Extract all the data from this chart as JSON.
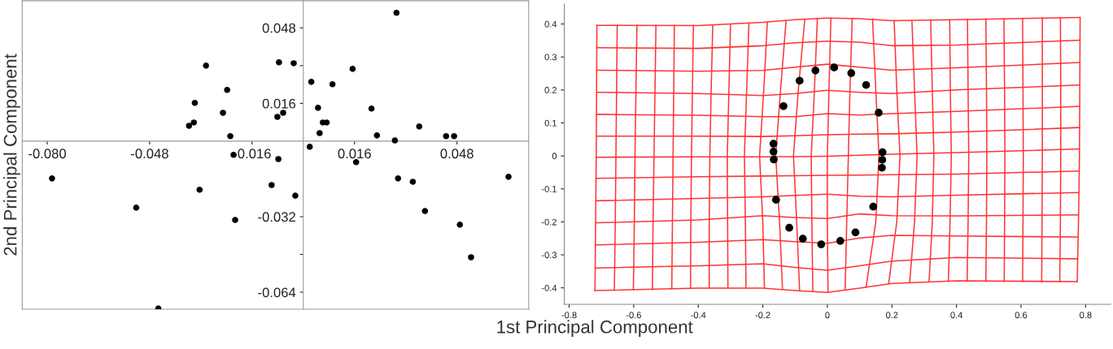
{
  "chart_data": [
    {
      "type": "scatter",
      "xlabel": "1st Principal Component",
      "ylabel": "2nd Principal Component",
      "color": "#000000",
      "marker": "circle",
      "x": [
        0.0291,
        -0.0076,
        -0.003,
        -0.0304,
        0.0154,
        0.0025,
        0.0091,
        -0.0238,
        -0.0339,
        -0.0251,
        0.0046,
        0.0213,
        -0.0063,
        -0.0081,
        -0.0342,
        -0.0357,
        0.0061,
        0.0073,
        0.0362,
        -0.0228,
        0.0051,
        0.023,
        0.0446,
        0.0471,
        0.0286,
        0.002,
        -0.0218,
        -0.0078,
        0.0165,
        -0.0785,
        0.0296,
        0.0342,
        0.0641,
        -0.0099,
        -0.0324,
        -0.0025,
        -0.0522,
        0.038,
        -0.0213,
        0.0489,
        0.0524,
        -0.0453
      ],
      "values": [
        0.0544,
        0.0334,
        0.033,
        0.032,
        0.0306,
        0.0251,
        0.0241,
        0.0217,
        0.0162,
        0.012,
        0.0141,
        0.0138,
        0.012,
        0.0103,
        0.0079,
        0.0065,
        0.0079,
        0.0079,
        0.0062,
        0.0021,
        0.0034,
        0.0024,
        0.0021,
        0.0021,
        0.0003,
        -0.0024,
        -0.0058,
        -0.0076,
        -0.0089,
        -0.0158,
        -0.0158,
        -0.0172,
        -0.0151,
        -0.0186,
        -0.0206,
        -0.0231,
        -0.0282,
        -0.0296,
        -0.0334,
        -0.0354,
        -0.0492,
        -0.0709
      ],
      "xlim": [
        -0.0878,
        0.0704
      ],
      "ylim": [
        -0.0712,
        0.0595
      ],
      "xticks": [
        {
          "value": -0.08,
          "label": "-0.080"
        },
        -0.048,
        -0.016,
        0.016,
        0.048
      ],
      "yticks": [
        0.048,
        {
          "value": 0.032,
          "label": null
        },
        0.016,
        -0.032,
        {
          "value": -0.048,
          "label": null
        },
        -0.064
      ]
    },
    {
      "type": "line",
      "xlim": [
        -0.815,
        0.878
      ],
      "ylim": [
        -0.45,
        0.46
      ],
      "xticks": [
        -0.8,
        -0.6,
        -0.4,
        -0.2,
        0,
        0.2,
        0.4,
        0.6,
        0.8
      ],
      "yticks": [
        -0.4,
        -0.3,
        -0.2,
        -0.1,
        0,
        0.1,
        0.2,
        0.3,
        0.4
      ],
      "series": [
        {
          "color": "#ff3333",
          "x": [
            -0.714,
            -0.4,
            -0.2,
            -0.1,
            0,
            0.1,
            0.2,
            0.4,
            0.783
          ],
          "values": [
            0.396,
            0.395,
            0.405,
            0.413,
            0.418,
            0.416,
            0.41,
            0.413,
            0.42
          ]
        },
        {
          "color": "#ff3333",
          "x": [
            -0.714,
            -0.4,
            -0.2,
            -0.1,
            0,
            0.1,
            0.2,
            0.4,
            0.782
          ],
          "values": [
            0.328,
            0.326,
            0.334,
            0.343,
            0.348,
            0.345,
            0.334,
            0.336,
            0.351
          ]
        },
        {
          "color": "#ff3333",
          "x": [
            -0.714,
            -0.4,
            -0.2,
            -0.1,
            0,
            0.1,
            0.2,
            0.4,
            0.781
          ],
          "values": [
            0.26,
            0.257,
            0.259,
            0.269,
            0.278,
            0.269,
            0.26,
            0.267,
            0.283
          ]
        },
        {
          "color": "#ff3333",
          "x": [
            -0.714,
            -0.4,
            -0.2,
            -0.1,
            0,
            0.1,
            0.2,
            0.4,
            0.781
          ],
          "values": [
            0.193,
            0.189,
            0.183,
            0.189,
            0.199,
            0.193,
            0.189,
            0.2,
            0.215
          ]
        },
        {
          "color": "#ff3333",
          "x": [
            -0.714,
            -0.4,
            -0.2,
            -0.1,
            0,
            0.1,
            0.2,
            0.4,
            0.781
          ],
          "values": [
            0.126,
            0.123,
            0.119,
            0.119,
            0.128,
            0.124,
            0.128,
            0.135,
            0.15
          ]
        },
        {
          "color": "#ff3333",
          "x": [
            -0.714,
            -0.4,
            -0.2,
            -0.1,
            0,
            0.1,
            0.2,
            0.4,
            0.78
          ],
          "values": [
            0.06,
            0.06,
            0.059,
            0.061,
            0.064,
            0.066,
            0.067,
            0.072,
            0.086
          ]
        },
        {
          "color": "#ff3333",
          "x": [
            -0.714,
            -0.4,
            -0.2,
            -0.1,
            0,
            0.1,
            0.2,
            0.4,
            0.78
          ],
          "values": [
            -0.004,
            -0.003,
            -0.003,
            -0.002,
            -0.001,
            0.002,
            0.005,
            0.01,
            0.021
          ]
        },
        {
          "color": "#ff3333",
          "x": [
            -0.715,
            -0.4,
            -0.2,
            -0.1,
            0,
            0.1,
            0.2,
            0.4,
            0.779
          ],
          "values": [
            -0.068,
            -0.063,
            -0.061,
            -0.06,
            -0.059,
            -0.058,
            -0.057,
            -0.055,
            -0.046
          ]
        },
        {
          "color": "#ff3333",
          "x": [
            -0.716,
            -0.4,
            -0.2,
            -0.1,
            0,
            0.1,
            0.2,
            0.4,
            0.778
          ],
          "values": [
            -0.136,
            -0.129,
            -0.124,
            -0.12,
            -0.116,
            -0.122,
            -0.124,
            -0.119,
            -0.111
          ]
        },
        {
          "color": "#ff3333",
          "x": [
            -0.717,
            -0.4,
            -0.2,
            -0.1,
            0,
            0.1,
            0.2,
            0.4,
            0.777
          ],
          "values": [
            -0.203,
            -0.194,
            -0.181,
            -0.187,
            -0.19,
            -0.176,
            -0.181,
            -0.182,
            -0.179
          ]
        },
        {
          "color": "#ff3333",
          "x": [
            -0.718,
            -0.4,
            -0.2,
            -0.1,
            0,
            0.1,
            0.2,
            0.4,
            0.776
          ],
          "values": [
            -0.27,
            -0.262,
            -0.254,
            -0.26,
            -0.265,
            -0.249,
            -0.241,
            -0.243,
            -0.246
          ]
        },
        {
          "color": "#ff3333",
          "x": [
            -0.719,
            -0.4,
            -0.2,
            -0.1,
            0,
            0.1,
            0.2,
            0.4,
            0.775
          ],
          "values": [
            -0.34,
            -0.333,
            -0.327,
            -0.338,
            -0.347,
            -0.333,
            -0.319,
            -0.308,
            -0.312
          ]
        },
        {
          "color": "#ff3333",
          "x": [
            -0.72,
            -0.4,
            -0.2,
            -0.1,
            0,
            0.1,
            0.2,
            0.4,
            0.774
          ],
          "values": [
            -0.408,
            -0.401,
            -0.401,
            -0.408,
            -0.414,
            -0.401,
            -0.387,
            -0.379,
            -0.381
          ]
        },
        {
          "color": "#ff3333",
          "x": [
            -0.714,
            -0.715,
            -0.716,
            -0.718,
            -0.72
          ],
          "values": [
            0.396,
            0.2,
            0,
            -0.2,
            -0.408
          ]
        },
        {
          "color": "#ff3333",
          "x": [
            -0.651,
            -0.653,
            -0.655,
            -0.657,
            -0.66
          ],
          "values": [
            0.396,
            0.2,
            0,
            -0.2,
            -0.407
          ]
        },
        {
          "color": "#ff3333",
          "x": [
            -0.59,
            -0.593,
            -0.596,
            -0.598,
            -0.601
          ],
          "values": [
            0.396,
            0.2,
            0,
            -0.2,
            -0.406
          ]
        },
        {
          "color": "#ff3333",
          "x": [
            -0.531,
            -0.534,
            -0.537,
            -0.54,
            -0.542
          ],
          "values": [
            0.396,
            0.2,
            0,
            -0.2,
            -0.405
          ]
        },
        {
          "color": "#ff3333",
          "x": [
            -0.474,
            -0.476,
            -0.478,
            -0.48,
            -0.482
          ],
          "values": [
            0.396,
            0.2,
            0,
            -0.2,
            -0.403
          ]
        },
        {
          "color": "#ff3333",
          "x": [
            -0.415,
            -0.418,
            -0.421,
            -0.423,
            -0.424
          ],
          "values": [
            0.395,
            0.2,
            0,
            -0.2,
            -0.402
          ]
        },
        {
          "color": "#ff3333",
          "x": [
            -0.355,
            -0.36,
            -0.364,
            -0.366,
            -0.366
          ],
          "values": [
            0.397,
            0.2,
            0,
            -0.2,
            -0.401
          ]
        },
        {
          "color": "#ff3333",
          "x": [
            -0.3,
            -0.305,
            -0.31,
            -0.309,
            -0.308
          ],
          "values": [
            0.399,
            0.2,
            0,
            -0.2,
            -0.401
          ]
        },
        {
          "color": "#ff3333",
          "x": [
            -0.243,
            -0.25,
            -0.257,
            -0.254,
            -0.252
          ],
          "values": [
            0.402,
            0.2,
            0,
            -0.2,
            -0.401
          ]
        },
        {
          "color": "#ff3333",
          "x": [
            -0.186,
            -0.197,
            -0.21,
            -0.2,
            -0.195
          ],
          "values": [
            0.405,
            0.2,
            0,
            -0.2,
            -0.401
          ]
        },
        {
          "color": "#ff3333",
          "x": [
            -0.128,
            -0.145,
            -0.16,
            -0.148,
            -0.139
          ],
          "values": [
            0.409,
            0.2,
            0,
            -0.2,
            -0.404
          ]
        },
        {
          "color": "#ff3333",
          "x": [
            -0.07,
            -0.09,
            -0.105,
            -0.095,
            -0.086
          ],
          "values": [
            0.413,
            0.2,
            0,
            -0.2,
            -0.407
          ]
        },
        {
          "color": "#ff3333",
          "x": [
            -0.031,
            -0.04,
            -0.05,
            -0.048,
            -0.045
          ],
          "values": [
            0.416,
            0.2,
            0,
            -0.2,
            -0.41
          ]
        },
        {
          "color": "#ff3333",
          "x": [
            0.011,
            0.005,
            0,
            0,
            0.002
          ],
          "values": [
            0.418,
            0.2,
            0,
            -0.2,
            -0.414
          ]
        },
        {
          "color": "#ff3333",
          "x": [
            0.077,
            0.07,
            0.065,
            0.06,
            0.055
          ],
          "values": [
            0.417,
            0.2,
            0,
            -0.2,
            -0.405
          ]
        },
        {
          "color": "#ff3333",
          "x": [
            0.14,
            0.15,
            0.16,
            0.15,
            0.12
          ],
          "values": [
            0.414,
            0.2,
            0,
            -0.2,
            -0.398
          ]
        },
        {
          "color": "#ff3333",
          "x": [
            0.207,
            0.215,
            0.225,
            0.215,
            0.19
          ],
          "values": [
            0.41,
            0.2,
            0,
            -0.2,
            -0.387
          ]
        },
        {
          "color": "#ff3333",
          "x": [
            0.262,
            0.27,
            0.278,
            0.27,
            0.255
          ],
          "values": [
            0.41,
            0.2,
            0,
            -0.2,
            -0.384
          ]
        },
        {
          "color": "#ff3333",
          "x": [
            0.32,
            0.325,
            0.33,
            0.325,
            0.315
          ],
          "values": [
            0.411,
            0.2,
            0,
            -0.2,
            -0.382
          ]
        },
        {
          "color": "#ff3333",
          "x": [
            0.379,
            0.381,
            0.384,
            0.38,
            0.375
          ],
          "values": [
            0.412,
            0.2,
            0,
            -0.2,
            -0.38
          ]
        },
        {
          "color": "#ff3333",
          "x": [
            0.434,
            0.436,
            0.438,
            0.436,
            0.433
          ],
          "values": [
            0.414,
            0.2,
            0,
            -0.2,
            -0.379
          ]
        },
        {
          "color": "#ff3333",
          "x": [
            0.491,
            0.493,
            0.494,
            0.493,
            0.491
          ],
          "values": [
            0.415,
            0.2,
            0,
            -0.2,
            -0.38
          ]
        },
        {
          "color": "#ff3333",
          "x": [
            0.547,
            0.549,
            0.55,
            0.549,
            0.548
          ],
          "values": [
            0.416,
            0.2,
            0,
            -0.2,
            -0.38
          ]
        },
        {
          "color": "#ff3333",
          "x": [
            0.605,
            0.606,
            0.607,
            0.606,
            0.605
          ],
          "values": [
            0.417,
            0.2,
            0,
            -0.2,
            -0.38
          ]
        },
        {
          "color": "#ff3333",
          "x": [
            0.666,
            0.666,
            0.666,
            0.665,
            0.664
          ],
          "values": [
            0.418,
            0.2,
            0,
            -0.2,
            -0.381
          ]
        },
        {
          "color": "#ff3333",
          "x": [
            0.722,
            0.723,
            0.723,
            0.722,
            0.72
          ],
          "values": [
            0.419,
            0.2,
            0,
            -0.2,
            -0.381
          ]
        },
        {
          "color": "#ff3333",
          "x": [
            0.783,
            0.782,
            0.781,
            0.778,
            0.774
          ],
          "values": [
            0.42,
            0.2,
            0,
            -0.2,
            -0.381
          ]
        },
        {
          "type": "scatter",
          "color": "#000000",
          "marker": "circle",
          "x": [
            -0.037,
            0.021,
            0.074,
            0.12,
            -0.086,
            -0.136,
            0.159,
            -0.167,
            -0.167,
            -0.166,
            0.171,
            0.17,
            0.169,
            -0.159,
            0.142,
            -0.118,
            0.087,
            -0.076,
            0.04,
            -0.019
          ],
          "values": [
            0.259,
            0.268,
            0.251,
            0.215,
            0.228,
            0.151,
            0.131,
            0.037,
            0.013,
            -0.011,
            0.011,
            -0.012,
            -0.036,
            -0.133,
            -0.154,
            -0.218,
            -0.232,
            -0.251,
            -0.258,
            -0.268
          ]
        }
      ]
    }
  ]
}
